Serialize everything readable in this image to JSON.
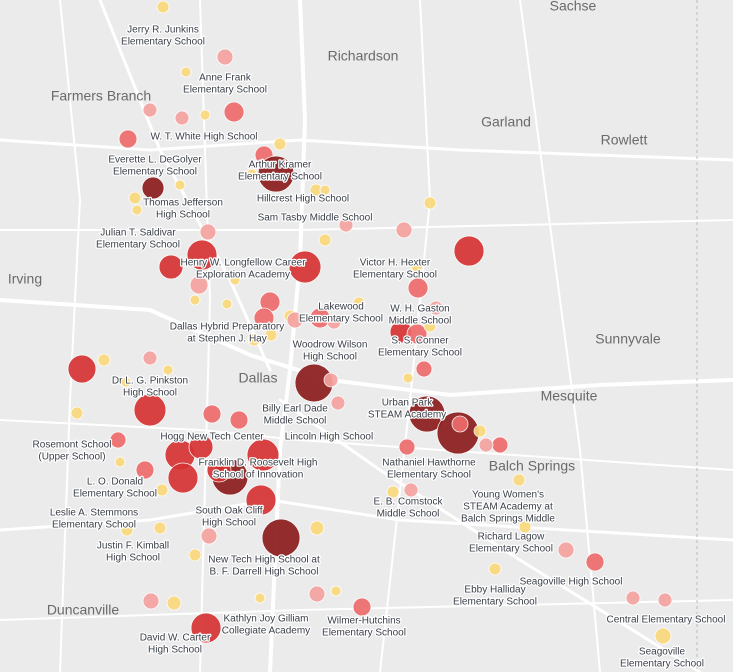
{
  "map": {
    "cities": [
      "Sachse",
      "Richardson",
      "Farmers Branch",
      "Garland",
      "Rowlett",
      "Irving",
      "Dallas",
      "Sunnyvale",
      "Mesquite",
      "Balch Springs",
      "Duncanville"
    ],
    "schools": [
      [
        "Jerry R. Junkins",
        "Elementary School"
      ],
      [
        "Anne Frank",
        "Elementary School"
      ],
      [
        "W. T. White High School"
      ],
      [
        "Everette L. DeGolyer",
        "Elementary School"
      ],
      [
        "Arthur Kramer",
        "Elementary School"
      ],
      [
        "Thomas Jefferson",
        "High School"
      ],
      [
        "Hillcrest High School"
      ],
      [
        "Sam Tasby Middle School"
      ],
      [
        "Julian T. Saldivar",
        "Elementary School"
      ],
      [
        "Henry W. Longfellow Career",
        "Exploration Academy"
      ],
      [
        "Victor H. Hexter",
        "Elementary School"
      ],
      [
        "Lakewood",
        "Elementary School"
      ],
      [
        "W. H. Gaston",
        "Middle School"
      ],
      [
        "Dallas Hybrid Preparatory",
        "at Stephen J. Hay"
      ],
      [
        "Woodrow Wilson",
        "High School"
      ],
      [
        "S. S. Conner",
        "Elementary School"
      ],
      [
        "Dr L. G. Pinkston",
        "High School"
      ],
      [
        "Billy Earl Dade",
        "Middle School"
      ],
      [
        "Urban Park",
        "STEAM Academy"
      ],
      [
        "Lincoln High School"
      ],
      [
        "Rosemont School",
        "(Upper School)"
      ],
      [
        "Hogg New Tech Center"
      ],
      [
        "Franklin D. Roosevelt High",
        "School of Innovation"
      ],
      [
        "Nathaniel Hawthorne",
        "Elementary School"
      ],
      [
        "L. O. Donald",
        "Elementary School"
      ],
      [
        "E. B. Comstock",
        "Middle School"
      ],
      [
        "Young Women's",
        "STEAM Academy at",
        "Balch Springs Middle"
      ],
      [
        "Leslie A. Stemmons",
        "Elementary School"
      ],
      [
        "South Oak Cliff",
        "High School"
      ],
      [
        "Justin F. Kimball",
        "High School"
      ],
      [
        "Richard Lagow",
        "Elementary School"
      ],
      [
        "New Tech High School at",
        "B. F. Darrell High School"
      ],
      [
        "Seagoville High School"
      ],
      [
        "Ebby Halliday",
        "Elementary School"
      ],
      [
        "Kathlyn Joy Gilliam",
        "Collegiate Academy"
      ],
      [
        "Wilmer-Hutchins",
        "Elementary School"
      ],
      [
        "Central Elementary School"
      ],
      [
        "David W. Carter",
        "High School"
      ],
      [
        "Seagoville",
        "Elementary School"
      ]
    ]
  }
}
